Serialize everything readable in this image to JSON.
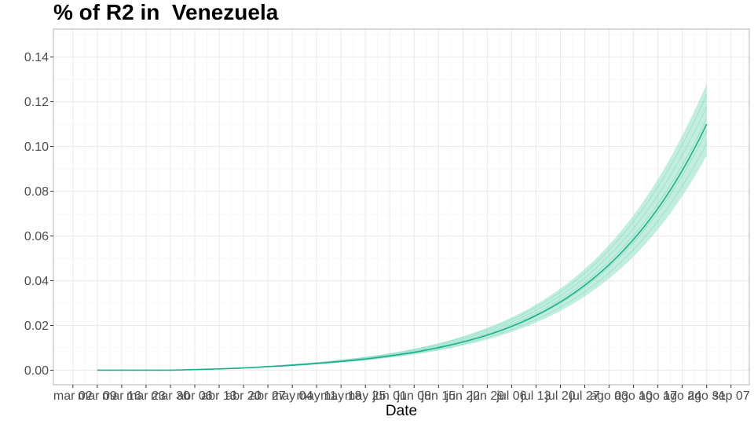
{
  "chart_data": {
    "type": "line",
    "title": "% of R2 in  Venezuela",
    "xlabel": "Date",
    "ylabel": "",
    "ylim": [
      -0.0065,
      0.1525
    ],
    "grid": true,
    "x_ticks": [
      "mar 02",
      "mar 09",
      "mar 16",
      "mar 23",
      "mar 30",
      "abr 06",
      "abr 13",
      "abr 20",
      "abr 27",
      "may 04",
      "may 11",
      "may 18",
      "may 25",
      "jun 01",
      "jun 08",
      "jun 15",
      "jun 22",
      "jun 29",
      "jul 06",
      "jul 13",
      "jul 20",
      "jul 27",
      "ago 03",
      "ago 10",
      "ago 17",
      "ago 24",
      "ago 31",
      "sep 07"
    ],
    "x_tick_index": [
      -1,
      0,
      1,
      2,
      3,
      4,
      5,
      6,
      7,
      8,
      9,
      10,
      11,
      12,
      13,
      14,
      15,
      16,
      17,
      18,
      19,
      20,
      21,
      22,
      23,
      24,
      25,
      26
    ],
    "y_ticks": [
      "0.00",
      "0.02",
      "0.04",
      "0.06",
      "0.08",
      "0.10",
      "0.12",
      "0.14"
    ],
    "y_tick_values": [
      0,
      0.02,
      0.04,
      0.06,
      0.08,
      0.1,
      0.12,
      0.14
    ],
    "series": [
      {
        "x": [
          "mar 09",
          "mar 16",
          "mar 23",
          "mar 30",
          "abr 06",
          "abr 13",
          "abr 20",
          "abr 27",
          "may 04",
          "may 11",
          "may 18",
          "may 25",
          "jun 01",
          "jun 08",
          "jun 15",
          "jun 22",
          "jun 29",
          "jul 06",
          "jul 13",
          "jul 20",
          "jul 27",
          "ago 03",
          "ago 10",
          "ago 17",
          "ago 24",
          "ago 31"
        ],
        "values": [
          0,
          0,
          0,
          0,
          0.0003,
          0.0006,
          0.001,
          0.0016,
          0.0022,
          0.003,
          0.0039,
          0.005,
          0.0064,
          0.008,
          0.0101,
          0.0126,
          0.0157,
          0.0196,
          0.0245,
          0.0305,
          0.038,
          0.0472,
          0.0585,
          0.0723,
          0.0893,
          0.11
        ],
        "values_upper": [
          0,
          0,
          0,
          0,
          0.0004,
          0.0007,
          0.0012,
          0.0019,
          0.0027,
          0.0036,
          0.0047,
          0.006,
          0.0076,
          0.0096,
          0.0121,
          0.0152,
          0.019,
          0.0236,
          0.0294,
          0.0365,
          0.0453,
          0.0561,
          0.0693,
          0.0854,
          0.105,
          0.128
        ],
        "values_lower": [
          0,
          0,
          0,
          0,
          0.0002,
          0.0005,
          0.0009,
          0.0014,
          0.002,
          0.0027,
          0.0035,
          0.0044,
          0.0056,
          0.007,
          0.0088,
          0.011,
          0.0137,
          0.0171,
          0.0213,
          0.0265,
          0.033,
          0.041,
          0.0508,
          0.0629,
          0.0778,
          0.096
        ]
      }
    ],
    "colors": {
      "line": "#1aaf87",
      "ribbon": "#8fe0c6",
      "grid": "#ebebeb",
      "panel_border": "#b3b3b3"
    }
  }
}
